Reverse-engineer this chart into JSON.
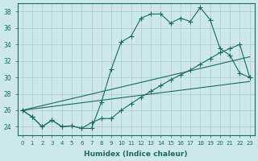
{
  "xlabel": "Humidex (Indice chaleur)",
  "xlim": [
    -0.5,
    23.5
  ],
  "ylim": [
    23,
    39
  ],
  "yticks": [
    24,
    26,
    28,
    30,
    32,
    34,
    36,
    38
  ],
  "xticks": [
    0,
    1,
    2,
    3,
    4,
    5,
    6,
    7,
    8,
    9,
    10,
    11,
    12,
    13,
    14,
    15,
    16,
    17,
    18,
    19,
    20,
    21,
    22,
    23
  ],
  "background_color": "#cce8e8",
  "grid_color": "#b0c8c8",
  "line_color": "#1a6b5a",
  "line1_x": [
    0,
    1,
    2,
    3,
    4,
    5,
    6,
    7,
    8,
    9,
    10,
    11,
    12,
    13,
    14,
    15,
    16,
    17,
    18,
    19,
    20,
    21,
    22,
    23
  ],
  "line1_y": [
    26.0,
    25.2,
    24.0,
    24.8,
    24.0,
    24.1,
    23.8,
    23.8,
    27.0,
    31.0,
    34.3,
    35.0,
    37.2,
    37.7,
    37.7,
    36.6,
    37.2,
    36.8,
    38.5,
    37.0,
    33.5,
    32.7,
    30.5,
    30.0
  ],
  "line2_x": [
    0,
    1,
    2,
    3,
    4,
    5,
    6,
    7,
    8,
    9,
    10,
    11,
    12,
    13,
    14,
    15,
    16,
    17,
    18,
    19,
    20,
    21,
    22,
    23
  ],
  "line2_y": [
    26.0,
    25.2,
    24.0,
    24.8,
    24.0,
    24.1,
    23.8,
    24.5,
    25.0,
    25.0,
    26.0,
    26.8,
    27.6,
    28.3,
    29.0,
    29.7,
    30.3,
    30.9,
    31.6,
    32.3,
    33.0,
    33.5,
    34.0,
    30.0
  ],
  "line3_x": [
    0,
    23
  ],
  "line3_y": [
    26.0,
    29.5
  ],
  "line4_x": [
    0,
    23
  ],
  "line4_y": [
    26.0,
    32.5
  ],
  "marker": "+",
  "marker_size": 4
}
